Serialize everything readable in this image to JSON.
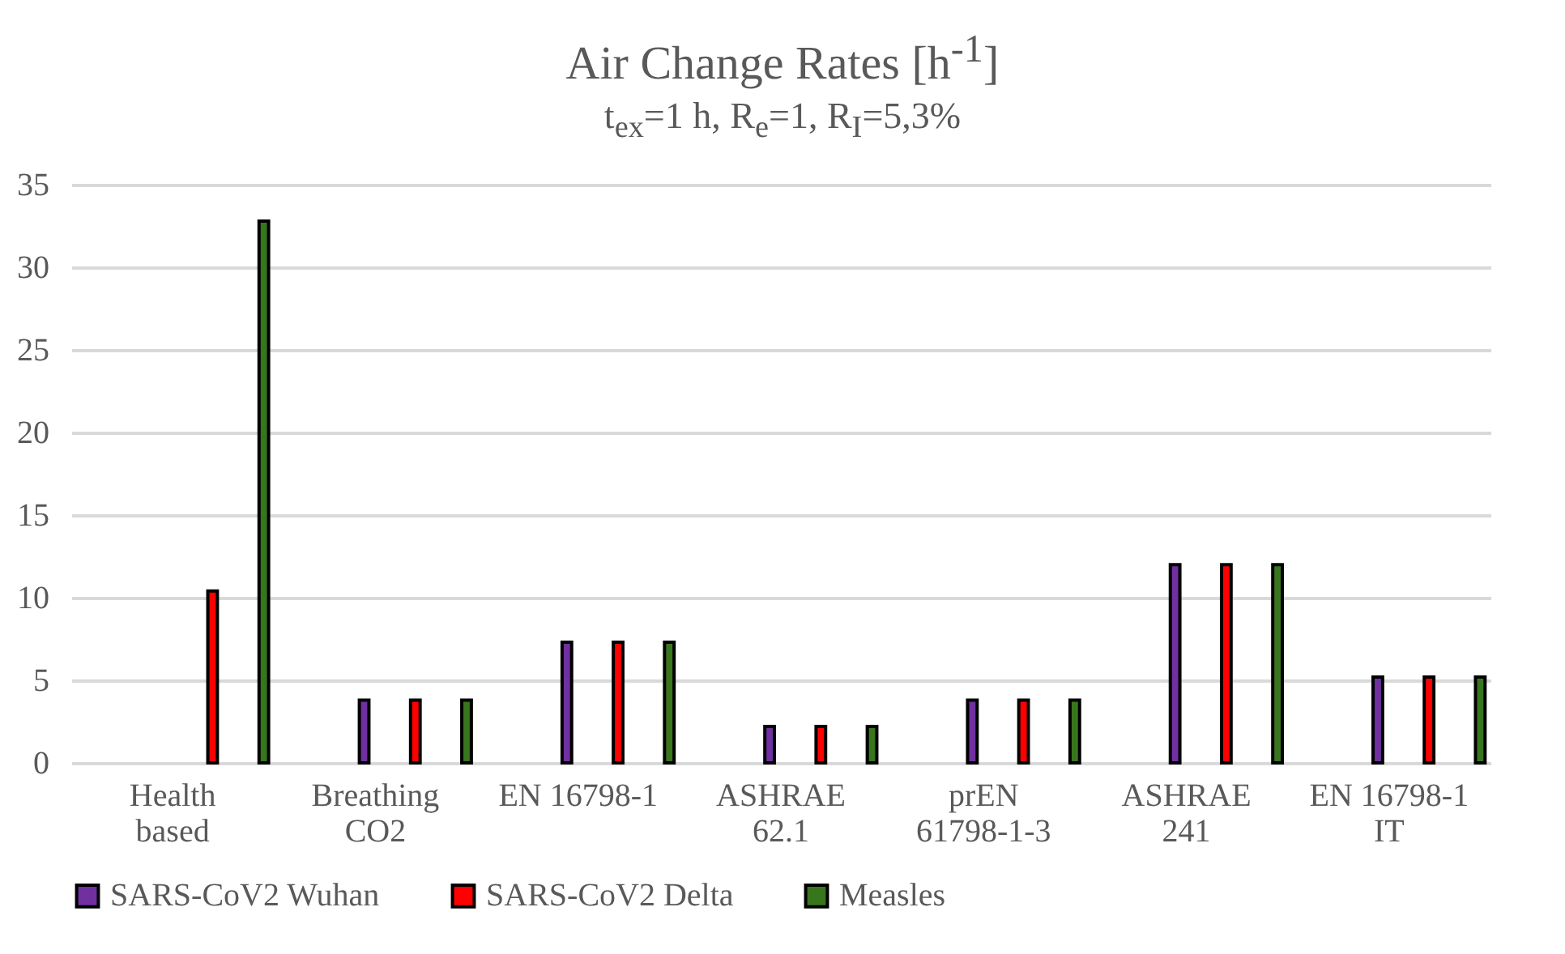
{
  "chart_data": {
    "type": "bar",
    "title": "Air Change Rates [h$^{-1}$]",
    "subtitle": "t$_{ex}$=1 h, R$_{e}$=1, R$_{I}$=5,3%",
    "categories": [
      "Health based",
      "Breathing CO2",
      "EN 16798-1",
      "ASHRAE 62.1",
      "prEN 61798-1-3",
      "ASHRAE 241",
      "EN 16798-1 IT"
    ],
    "series": [
      {
        "name": "SARS-CoV2 Wuhan",
        "color": "#7030a0",
        "values": [
          null,
          3.8,
          7.3,
          2.2,
          3.8,
          12.0,
          5.2
        ]
      },
      {
        "name": "SARS-CoV2 Delta",
        "color": "#ff0000",
        "values": [
          10.4,
          3.8,
          7.3,
          2.2,
          3.8,
          12.0,
          5.2
        ]
      },
      {
        "name": "Measles",
        "color": "#38761d",
        "values": [
          32.8,
          3.8,
          7.3,
          2.2,
          3.8,
          12.0,
          5.2
        ]
      }
    ],
    "ylim": [
      0,
      35
    ],
    "yticks": [
      0,
      5,
      10,
      15,
      20,
      25,
      30,
      35
    ],
    "grid": "y",
    "legend": "bottom"
  }
}
